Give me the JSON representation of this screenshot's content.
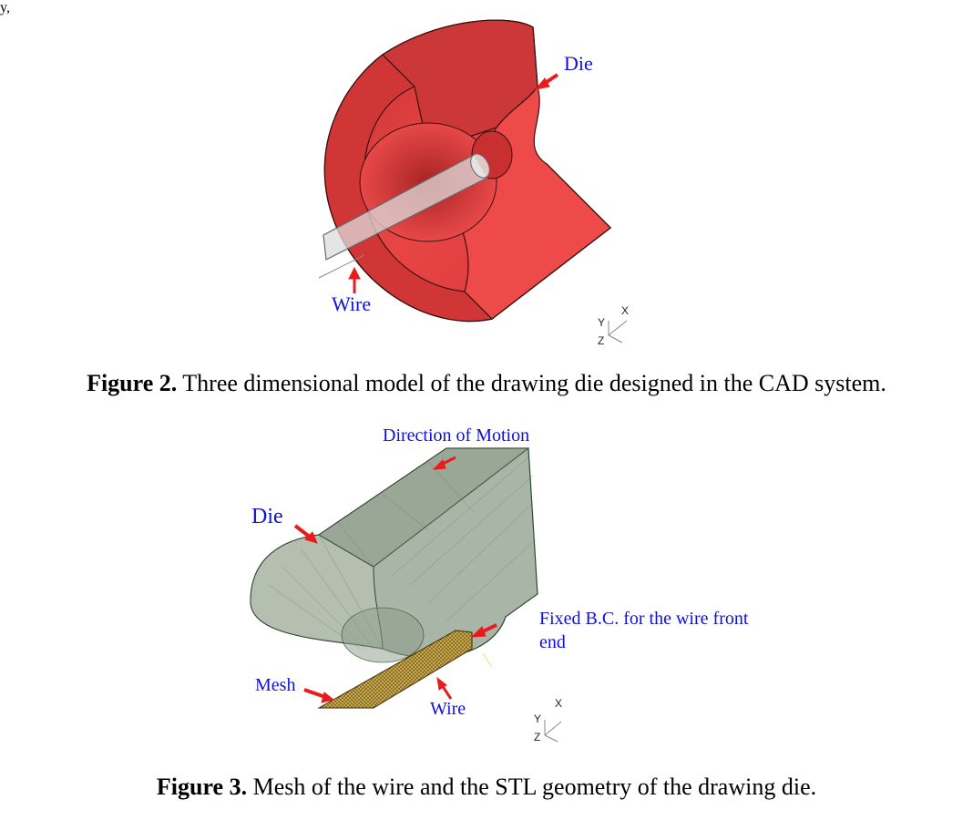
{
  "top_fragment": "y,",
  "figure2": {
    "caption_number": "Figure 2.",
    "caption_text": " Three dimensional model of the drawing die designed in the CAD system.",
    "labels": {
      "die": "Die",
      "wire": "Wire"
    },
    "axes": {
      "x": "X",
      "y": "Y",
      "z": "Z"
    },
    "colors": {
      "die": "#e53b3b",
      "arrow": "#e81c1c",
      "label": "#1010dd"
    }
  },
  "figure3": {
    "caption_number": "Figure 3.",
    "caption_text": " Mesh of the wire and the STL geometry of the drawing die.",
    "labels": {
      "direction": "Direction of Motion",
      "die": "Die",
      "fixed_line1": "Fixed B.C. for the wire front",
      "fixed_line2": "end",
      "mesh": "Mesh",
      "wire": "Wire"
    },
    "axes": {
      "x": "X",
      "y": "Y",
      "z": "Z"
    },
    "colors": {
      "die": "#a9b5a6",
      "mesh": "#c9a84a",
      "arrow": "#e81c1c",
      "label": "#1010dd"
    }
  }
}
